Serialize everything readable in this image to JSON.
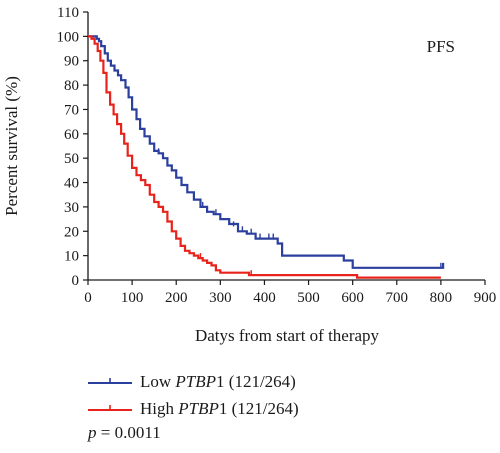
{
  "chart_data": {
    "type": "line",
    "subtype": "kaplan-meier",
    "annotation": "PFS",
    "xlabel": "Datys from start of therapy",
    "ylabel": "Percent survival (%)",
    "xlim": [
      0,
      900
    ],
    "ylim": [
      0,
      110
    ],
    "xticks": [
      0,
      100,
      200,
      300,
      400,
      500,
      600,
      700,
      800,
      900
    ],
    "yticks": [
      0,
      10,
      20,
      30,
      40,
      50,
      60,
      70,
      80,
      90,
      100,
      110
    ],
    "grid": false,
    "legend_position": "bottom",
    "series": [
      {
        "name": "Low PTBP1 (121/264)",
        "name_prefix": "Low ",
        "name_gene": "PTBP",
        "name_suffix": "1 (121/264)",
        "color": "#2b3f9e",
        "x": [
          0,
          10,
          20,
          25,
          30,
          38,
          45,
          52,
          60,
          68,
          75,
          85,
          92,
          100,
          110,
          118,
          128,
          140,
          150,
          160,
          170,
          180,
          190,
          200,
          212,
          225,
          240,
          255,
          270,
          285,
          300,
          320,
          340,
          360,
          380,
          410,
          430,
          440,
          470,
          500,
          540,
          580,
          600,
          700,
          800,
          805
        ],
        "y": [
          100,
          100,
          99,
          98,
          96,
          93,
          90,
          88,
          86,
          84,
          82,
          79,
          75,
          70,
          66,
          62,
          59,
          56,
          53,
          52,
          50,
          47,
          45,
          42,
          39,
          36,
          33,
          30,
          28,
          27,
          25,
          23,
          20,
          19,
          17,
          17,
          15,
          10,
          10,
          10,
          10,
          8,
          5,
          5,
          5,
          7
        ],
        "censored_x": [
          160,
          260,
          290,
          330,
          350,
          370,
          390,
          410,
          420,
          800
        ],
        "censored_y": [
          52,
          30,
          27,
          22,
          20,
          19,
          17,
          17,
          17,
          5
        ]
      },
      {
        "name": "High PTBP1 (121/264)",
        "name_prefix": "High ",
        "name_gene": "PTBP",
        "name_suffix": "1 (121/264)",
        "color": "#e8231b",
        "x": [
          0,
          8,
          15,
          22,
          28,
          35,
          42,
          50,
          58,
          66,
          75,
          82,
          90,
          100,
          110,
          120,
          130,
          140,
          150,
          160,
          170,
          180,
          190,
          200,
          210,
          220,
          230,
          240,
          250,
          260,
          270,
          280,
          290,
          300,
          330,
          360,
          365,
          500,
          600,
          610,
          700,
          800
        ],
        "y": [
          100,
          99,
          97,
          94,
          90,
          85,
          77,
          72,
          68,
          64,
          60,
          56,
          51,
          46,
          43,
          41,
          39,
          35,
          32,
          30,
          28,
          24,
          20,
          17,
          14,
          12,
          11,
          10,
          9,
          8,
          7,
          6,
          4,
          3,
          3,
          3,
          2,
          2,
          2,
          1,
          1,
          1
        ],
        "censored_x": [
          255,
          370
        ],
        "censored_y": [
          9,
          2
        ]
      }
    ],
    "pvalue_var": "p",
    "pvalue_text": " = 0.0011"
  }
}
